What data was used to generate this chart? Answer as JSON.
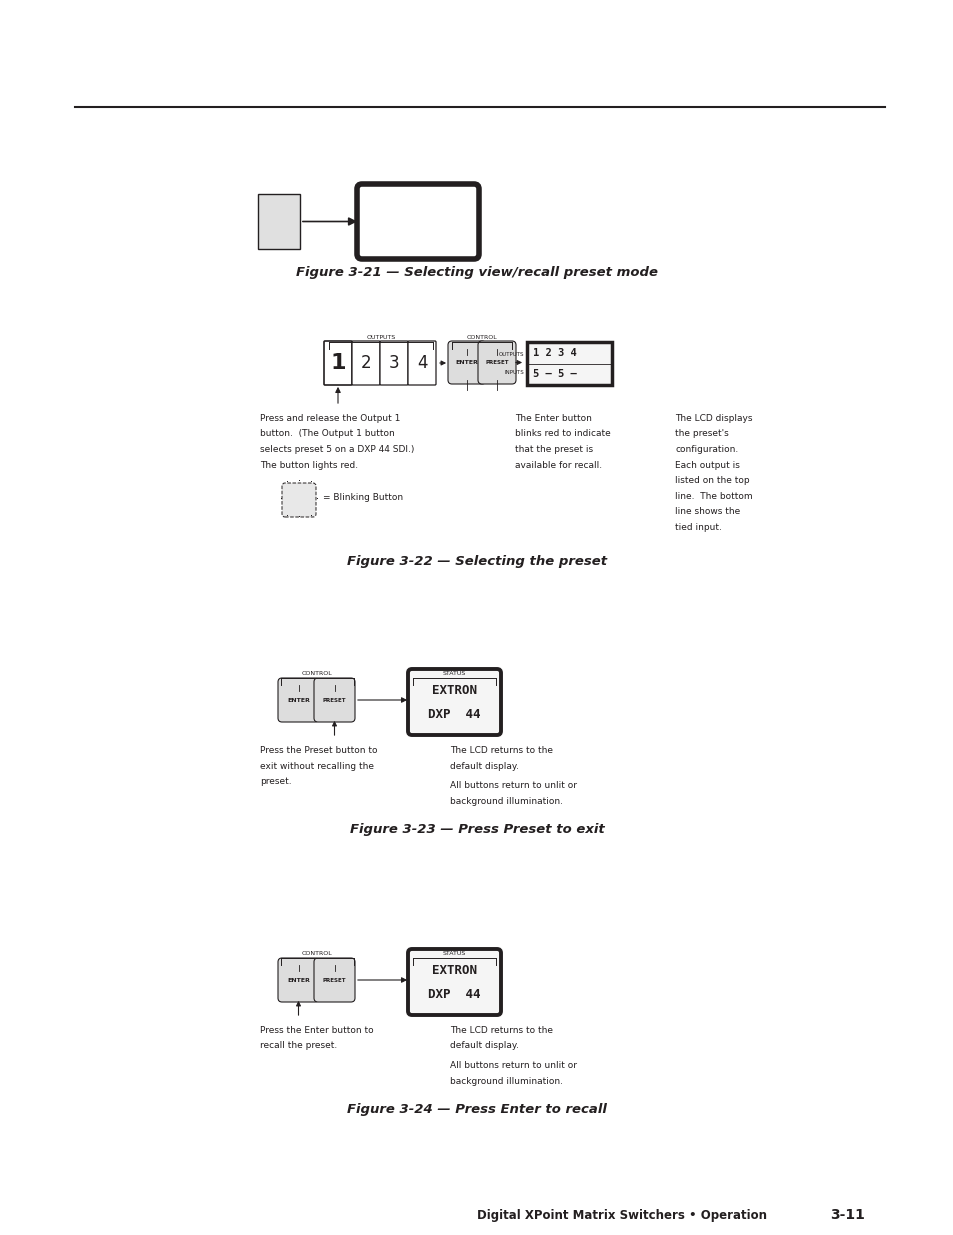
{
  "bg_color": "#ffffff",
  "text_color": "#231f20",
  "page_width": 9.54,
  "page_height": 12.35,
  "fig21_title": "Figure 3-21 — Selecting view/recall preset mode",
  "fig22_title": "Figure 3-22 — Selecting the preset",
  "fig23_title": "Figure 3-23 — Press Preset to exit",
  "fig24_title": "Figure 3-24 — Press Enter to recall",
  "footer_text": "Digital XPoint Matrix Switchers • Operation",
  "footer_page": "3-11"
}
